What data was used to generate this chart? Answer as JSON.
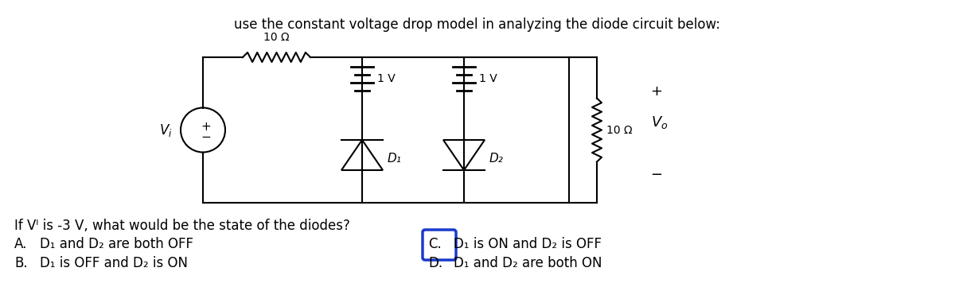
{
  "title": "use the constant voltage drop model in analyzing the diode circuit below:",
  "title_fontsize": 12,
  "background_color": "#ffffff",
  "question": "If Vᴵ is -3 V, what would be the state of the diodes?",
  "answers": [
    {
      "label": "A.",
      "text": "D₁ and D₂ are both OFF"
    },
    {
      "label": "B.",
      "text": "D₁ is OFF and D₂ is ON"
    },
    {
      "label": "C.",
      "text": "D₁ is ON and D₂ is OFF",
      "correct": true
    },
    {
      "label": "D.",
      "text": "D₁ and D₂ are both ON"
    }
  ],
  "circuit": {
    "resistor_top_label": "10 Ω",
    "resistor_right_label": "10 Ω",
    "battery1_label": "1 V",
    "battery2_label": "1 V",
    "diode1_label": "D₁",
    "diode2_label": "D₂",
    "vi_label": "Vᴵ",
    "vo_label": "Vₒ"
  }
}
